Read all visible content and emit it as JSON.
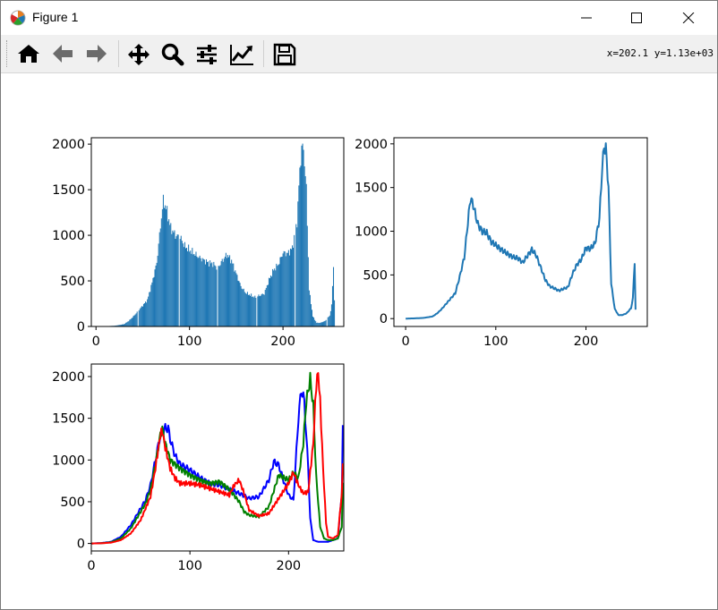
{
  "window": {
    "title": "Figure 1"
  },
  "icons": {
    "app": "matplotlib-icon",
    "minimize": "minimize-icon",
    "maximize": "maximize-icon",
    "close": "close-icon"
  },
  "toolbar": {
    "buttons": [
      "home-icon",
      "back-arrow-icon",
      "forward-arrow-icon",
      "pan-icon",
      "zoom-icon",
      "configure-subplots-icon",
      "edit-axes-icon",
      "save-icon"
    ],
    "coords": "x=202.1 y=1.13e+03"
  },
  "colors": {
    "histogram": "#1f77b4",
    "line": "#1f77b4",
    "blue": "#0000ff",
    "green": "#008000",
    "red": "#ff0000"
  },
  "chart_data": [
    {
      "type": "bar",
      "xlim": [
        -5,
        265
      ],
      "ylim": [
        0,
        2070
      ],
      "xticks": [
        0,
        100,
        200
      ],
      "yticks": [
        0,
        500,
        1000,
        1500,
        2000
      ],
      "grid": false,
      "keypoints_x": [
        0,
        10,
        20,
        30,
        35,
        40,
        45,
        50,
        55,
        60,
        65,
        68,
        70,
        72,
        75,
        80,
        85,
        90,
        95,
        100,
        110,
        120,
        125,
        130,
        135,
        140,
        145,
        150,
        155,
        160,
        170,
        180,
        185,
        190,
        195,
        200,
        205,
        210,
        215,
        218,
        220,
        222,
        225,
        228,
        232,
        236,
        240,
        245,
        250,
        252,
        253,
        254,
        255
      ],
      "keypoints_y": [
        0,
        3,
        8,
        25,
        60,
        110,
        170,
        230,
        290,
        480,
        700,
        1000,
        1200,
        1380,
        1300,
        1080,
        1000,
        980,
        880,
        840,
        760,
        700,
        690,
        640,
        720,
        790,
        720,
        580,
        440,
        370,
        320,
        360,
        510,
        620,
        680,
        810,
        800,
        860,
        1150,
        1720,
        1960,
        1950,
        1500,
        400,
        110,
        40,
        40,
        60,
        120,
        230,
        450,
        650,
        300
      ]
    },
    {
      "type": "line",
      "xlim": [
        -13,
        268
      ],
      "ylim": [
        -90,
        2070
      ],
      "xticks": [
        0,
        100,
        200
      ],
      "yticks": [
        0,
        500,
        1000,
        1500,
        2000
      ],
      "grid": false,
      "x": [
        0,
        10,
        20,
        30,
        35,
        40,
        45,
        50,
        55,
        60,
        65,
        68,
        70,
        72,
        75,
        80,
        85,
        90,
        95,
        100,
        110,
        120,
        125,
        130,
        135,
        140,
        145,
        150,
        155,
        160,
        170,
        180,
        185,
        190,
        195,
        200,
        205,
        210,
        215,
        218,
        220,
        222,
        225,
        228,
        232,
        236,
        240,
        245,
        250,
        252,
        253,
        254,
        255
      ],
      "y": [
        0,
        3,
        8,
        25,
        60,
        110,
        170,
        230,
        290,
        480,
        700,
        1000,
        1200,
        1380,
        1300,
        1080,
        1000,
        980,
        880,
        840,
        760,
        700,
        690,
        640,
        720,
        790,
        720,
        580,
        440,
        370,
        320,
        360,
        510,
        620,
        680,
        810,
        800,
        860,
        1150,
        1720,
        1960,
        1950,
        1500,
        400,
        110,
        40,
        40,
        60,
        120,
        230,
        450,
        650,
        100
      ]
    },
    {
      "type": "line",
      "xlim": [
        0,
        256
      ],
      "ylim": [
        -90,
        2150
      ],
      "xticks": [
        0,
        100,
        200
      ],
      "yticks": [
        0,
        500,
        1000,
        1500,
        2000
      ],
      "grid": false,
      "series": [
        {
          "color": "#0000ff",
          "x": [
            0,
            10,
            20,
            30,
            40,
            50,
            55,
            60,
            65,
            70,
            75,
            78,
            80,
            85,
            90,
            100,
            110,
            120,
            130,
            140,
            150,
            160,
            170,
            180,
            185,
            190,
            195,
            200,
            205,
            210,
            213,
            216,
            220,
            222,
            225,
            230,
            240,
            250,
            254,
            255
          ],
          "y": [
            0,
            5,
            20,
            80,
            220,
            420,
            520,
            700,
            1000,
            1300,
            1380,
            1380,
            1250,
            1050,
            950,
            880,
            790,
            720,
            700,
            650,
            600,
            540,
            560,
            760,
            980,
            940,
            750,
            580,
            520,
            1500,
            1850,
            1700,
            900,
            300,
            40,
            20,
            20,
            60,
            600,
            1420
          ]
        },
        {
          "color": "#008000",
          "x": [
            0,
            10,
            20,
            30,
            40,
            50,
            55,
            60,
            65,
            70,
            72,
            75,
            80,
            90,
            100,
            110,
            120,
            130,
            140,
            150,
            155,
            160,
            170,
            180,
            190,
            200,
            205,
            210,
            215,
            218,
            222,
            225,
            228,
            232,
            236,
            240,
            245,
            250,
            254,
            255
          ],
          "y": [
            0,
            3,
            15,
            60,
            180,
            380,
            480,
            650,
            950,
            1300,
            1380,
            1200,
            1000,
            900,
            820,
            760,
            720,
            740,
            650,
            500,
            380,
            340,
            320,
            440,
            820,
            760,
            850,
            780,
            1200,
            1700,
            1970,
            1650,
            800,
            200,
            60,
            40,
            40,
            60,
            200,
            700
          ]
        },
        {
          "color": "#ff0000",
          "x": [
            0,
            10,
            20,
            30,
            40,
            50,
            60,
            65,
            70,
            72,
            75,
            80,
            85,
            90,
            100,
            110,
            120,
            130,
            140,
            145,
            150,
            155,
            160,
            170,
            180,
            190,
            200,
            205,
            210,
            215,
            220,
            225,
            228,
            230,
            232,
            235,
            238,
            240,
            245,
            250,
            254,
            255
          ],
          "y": [
            0,
            2,
            10,
            40,
            120,
            280,
            560,
            900,
            1300,
            1350,
            1150,
            900,
            780,
            720,
            720,
            700,
            660,
            620,
            580,
            700,
            760,
            600,
            400,
            330,
            360,
            540,
            720,
            850,
            700,
            600,
            620,
            1200,
            1900,
            2050,
            1700,
            900,
            250,
            80,
            60,
            100,
            600,
            950
          ]
        }
      ]
    }
  ]
}
